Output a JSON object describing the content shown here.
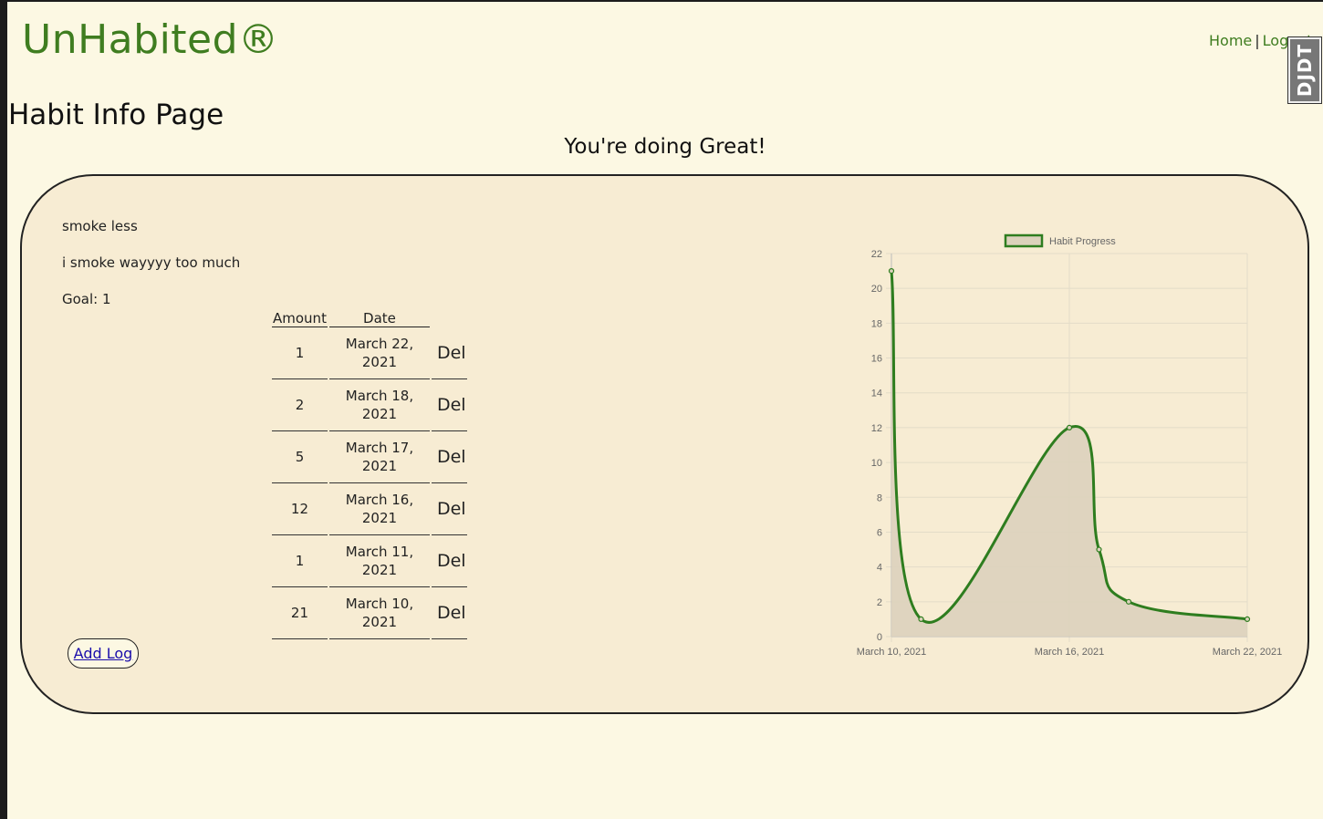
{
  "brand": "UnHabited®",
  "nav": {
    "home": "Home",
    "sep": "|",
    "logout": "Logout"
  },
  "debug_toolbar": "DJDT",
  "page_title": "Habit Info Page",
  "message": "You're doing Great!",
  "habit": {
    "name": "smoke less",
    "description": "i smoke wayyyy too much",
    "goal": "Goal: 1"
  },
  "logs_table": {
    "headers": {
      "amount": "Amount",
      "date": "Date"
    },
    "rows": [
      {
        "amount": "1",
        "date_line1": "March 22,",
        "date_line2": "2021",
        "del": "Del"
      },
      {
        "amount": "2",
        "date_line1": "March 18,",
        "date_line2": "2021",
        "del": "Del"
      },
      {
        "amount": "5",
        "date_line1": "March 17,",
        "date_line2": "2021",
        "del": "Del"
      },
      {
        "amount": "12",
        "date_line1": "March 16,",
        "date_line2": "2021",
        "del": "Del"
      },
      {
        "amount": "1",
        "date_line1": "March 11,",
        "date_line2": "2021",
        "del": "Del"
      },
      {
        "amount": "21",
        "date_line1": "March 10,",
        "date_line2": "2021",
        "del": "Del"
      }
    ]
  },
  "add_log": "Add Log",
  "colors": {
    "brand": "#3f7d20",
    "line": "#2e7d1f",
    "fill": "#dcd2bc",
    "background": "#fcf8e3",
    "card": "#f7ecd3"
  },
  "chart_data": {
    "type": "line",
    "series": [
      {
        "name": "Habit Progress",
        "x": [
          "March 10, 2021",
          "March 11, 2021",
          "March 16, 2021",
          "March 17, 2021",
          "March 18, 2021",
          "March 22, 2021"
        ],
        "values": [
          21,
          1,
          12,
          5,
          2,
          1
        ]
      }
    ],
    "x_tick_labels": [
      "March 10, 2021",
      "March 16, 2021",
      "March 22, 2021"
    ],
    "y_ticks": [
      0,
      2,
      4,
      6,
      8,
      10,
      12,
      14,
      16,
      18,
      20,
      22
    ],
    "ylim": [
      0,
      22
    ],
    "grid": true,
    "filled": true,
    "legend_position": "top"
  }
}
